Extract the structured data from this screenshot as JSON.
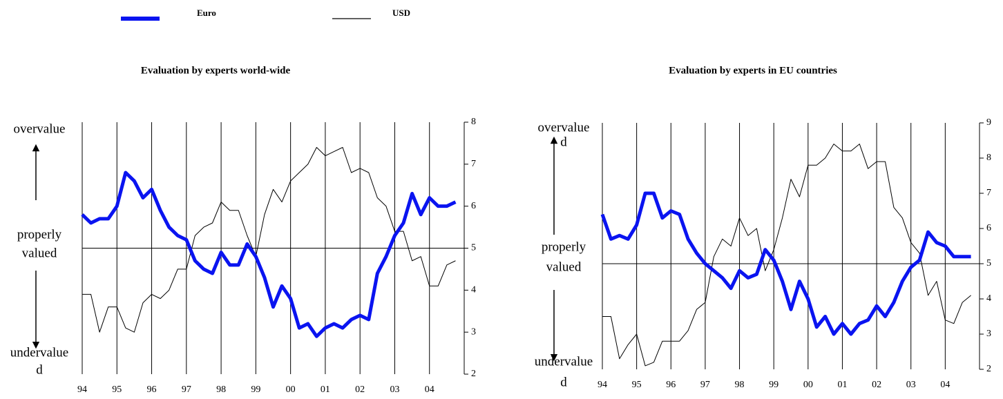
{
  "chart_data": [
    {
      "type": "line",
      "title": "Evaluation by experts world-wide",
      "side_labels": {
        "top": [
          "overvalue"
        ],
        "middle": [
          "properly",
          "valued"
        ],
        "bottom": [
          "undervalue",
          "d"
        ]
      },
      "x": [
        1994,
        1994.25,
        1994.5,
        1994.75,
        1995,
        1995.25,
        1995.5,
        1995.75,
        1996,
        1996.25,
        1996.5,
        1996.75,
        1997,
        1997.25,
        1997.5,
        1997.75,
        1998,
        1998.25,
        1998.5,
        1998.75,
        1999,
        1999.25,
        1999.5,
        1999.75,
        2000,
        2000.25,
        2000.5,
        2000.75,
        2001,
        2001.25,
        2001.5,
        2001.75,
        2002,
        2002.25,
        2002.5,
        2002.75,
        2003,
        2003.25,
        2003.5,
        2003.75,
        2004,
        2004.25,
        2004.5,
        2004.75
      ],
      "series": [
        {
          "name": "Euro",
          "color": "#0a14f0",
          "values": [
            5.8,
            5.6,
            5.7,
            5.7,
            6.0,
            6.8,
            6.6,
            6.2,
            6.4,
            5.9,
            5.5,
            5.3,
            5.2,
            4.7,
            4.5,
            4.4,
            4.9,
            4.6,
            4.6,
            5.1,
            4.8,
            4.3,
            3.6,
            4.1,
            3.8,
            3.1,
            3.2,
            2.9,
            3.1,
            3.2,
            3.1,
            3.3,
            3.4,
            3.3,
            4.4,
            4.8,
            5.3,
            5.6,
            6.3,
            5.8,
            6.2,
            6.0,
            6.0,
            6.1
          ]
        },
        {
          "name": "USD",
          "color": "#000000",
          "values": [
            3.9,
            3.9,
            3.0,
            3.6,
            3.6,
            3.1,
            3.0,
            3.7,
            3.9,
            3.8,
            4.0,
            4.5,
            4.5,
            5.3,
            5.5,
            5.6,
            6.1,
            5.9,
            5.9,
            5.3,
            4.8,
            5.8,
            6.4,
            6.1,
            6.6,
            6.8,
            7.0,
            7.4,
            7.2,
            7.3,
            7.4,
            6.8,
            6.9,
            6.8,
            6.2,
            6.0,
            5.4,
            5.4,
            4.7,
            4.8,
            4.1,
            4.1,
            4.6,
            4.7
          ]
        }
      ],
      "xlim": [
        1994,
        2005
      ],
      "xticks": [
        {
          "value": 1994,
          "label": "94"
        },
        {
          "value": 1995,
          "label": "95"
        },
        {
          "value": 1996,
          "label": "96"
        },
        {
          "value": 1997,
          "label": "97"
        },
        {
          "value": 1998,
          "label": "98"
        },
        {
          "value": 1999,
          "label": "99"
        },
        {
          "value": 2000,
          "label": "00"
        },
        {
          "value": 2001,
          "label": "01"
        },
        {
          "value": 2002,
          "label": "02"
        },
        {
          "value": 2003,
          "label": "03"
        },
        {
          "value": 2004,
          "label": "04"
        }
      ],
      "ylim": [
        2,
        8
      ],
      "yticks": [
        2,
        3,
        4,
        5,
        6,
        7,
        8
      ],
      "reference_line": 5,
      "grid": true
    },
    {
      "type": "line",
      "title": "Evaluation by experts in EU countries",
      "side_labels": {
        "top": [
          "overvalue",
          "d"
        ],
        "middle": [
          "properly",
          "valued"
        ],
        "bottom": [
          "undervalue",
          "d"
        ]
      },
      "x": [
        1994,
        1994.25,
        1994.5,
        1994.75,
        1995,
        1995.25,
        1995.5,
        1995.75,
        1996,
        1996.25,
        1996.5,
        1996.75,
        1997,
        1997.25,
        1997.5,
        1997.75,
        1998,
        1998.25,
        1998.5,
        1998.75,
        1999,
        1999.25,
        1999.5,
        1999.75,
        2000,
        2000.25,
        2000.5,
        2000.75,
        2001,
        2001.25,
        2001.5,
        2001.75,
        2002,
        2002.25,
        2002.5,
        2002.75,
        2003,
        2003.25,
        2003.5,
        2003.75,
        2004,
        2004.25,
        2004.5,
        2004.75
      ],
      "series": [
        {
          "name": "Euro",
          "color": "#0a14f0",
          "values": [
            6.4,
            5.7,
            5.8,
            5.7,
            6.1,
            7.0,
            7.0,
            6.3,
            6.5,
            6.4,
            5.7,
            5.3,
            5.0,
            4.8,
            4.6,
            4.3,
            4.8,
            4.6,
            4.7,
            5.4,
            5.1,
            4.5,
            3.7,
            4.5,
            4.0,
            3.2,
            3.5,
            3.0,
            3.3,
            3.0,
            3.3,
            3.4,
            3.8,
            3.5,
            3.9,
            4.5,
            4.9,
            5.1,
            5.9,
            5.6,
            5.5,
            5.2,
            5.2,
            5.2
          ]
        },
        {
          "name": "USD",
          "color": "#000000",
          "values": [
            3.5,
            3.5,
            2.3,
            2.7,
            3.0,
            2.1,
            2.2,
            2.8,
            2.8,
            2.8,
            3.1,
            3.7,
            3.9,
            5.2,
            5.7,
            5.5,
            6.3,
            5.8,
            6.0,
            4.8,
            5.4,
            6.3,
            7.4,
            6.9,
            7.8,
            7.8,
            8.0,
            8.4,
            8.2,
            8.2,
            8.4,
            7.7,
            7.9,
            7.9,
            6.6,
            6.3,
            5.6,
            5.3,
            4.1,
            4.5,
            3.4,
            3.3,
            3.9,
            4.1
          ]
        }
      ],
      "xlim": [
        1994,
        2005
      ],
      "xticks": [
        {
          "value": 1994,
          "label": "94"
        },
        {
          "value": 1995,
          "label": "95"
        },
        {
          "value": 1996,
          "label": "96"
        },
        {
          "value": 1997,
          "label": "97"
        },
        {
          "value": 1998,
          "label": "98"
        },
        {
          "value": 1999,
          "label": "99"
        },
        {
          "value": 2000,
          "label": "00"
        },
        {
          "value": 2001,
          "label": "01"
        },
        {
          "value": 2002,
          "label": "02"
        },
        {
          "value": 2003,
          "label": "03"
        },
        {
          "value": 2004,
          "label": "04"
        }
      ],
      "ylim": [
        2,
        9
      ],
      "yticks": [
        2,
        3,
        4,
        5,
        6,
        7,
        8,
        9
      ],
      "reference_line": 5,
      "grid": true
    }
  ]
}
